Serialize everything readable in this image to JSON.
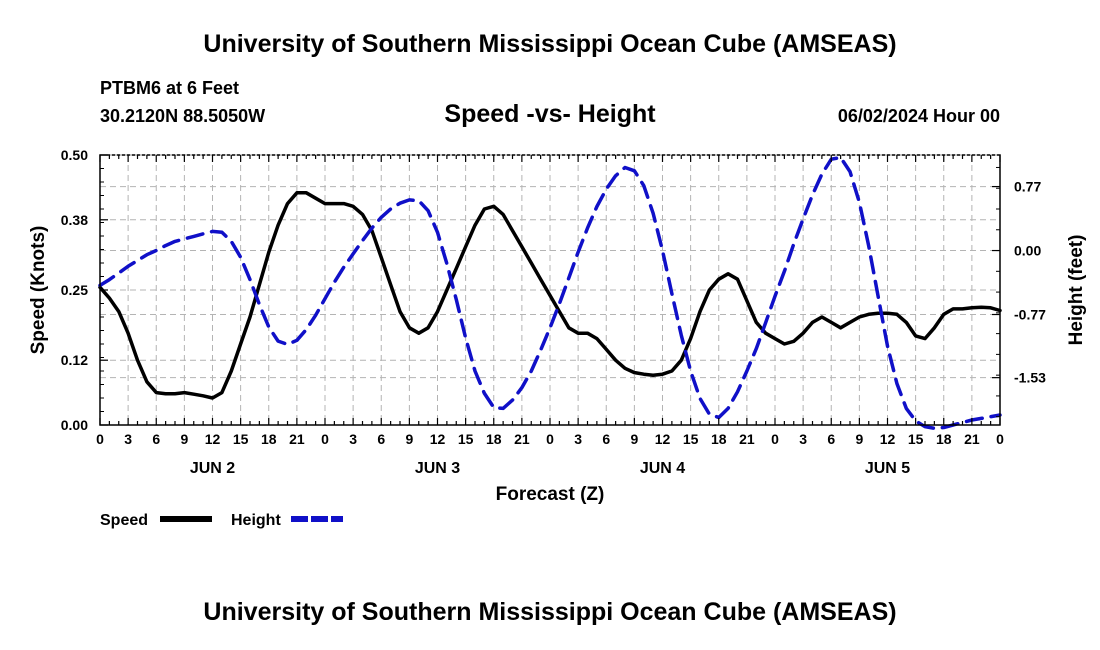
{
  "page_title_top": "University of Southern Mississippi Ocean Cube (AMSEAS)",
  "page_title_bottom": "University of Southern Mississippi Ocean Cube (AMSEAS)",
  "station": {
    "name": "PTBM6 at 6 Feet",
    "coordinates": "30.2120N  88.5050W"
  },
  "run_time": "06/02/2024 Hour 00",
  "colors": {
    "speed": "#000000",
    "height": "#1010c8",
    "grid": "#b4b4b4",
    "axis": "#000000"
  },
  "chart_data": {
    "type": "line",
    "title": "Speed -vs- Height",
    "xlabel": "Forecast (Z)",
    "ylabel": "Speed (Knots)",
    "y2label": "Height (feet)",
    "x_units": "forecast hours from 06/02/2024 00Z",
    "xlim": [
      0,
      96
    ],
    "ylim": [
      0,
      0.5
    ],
    "y2lim": [
      -2.1,
      1.15
    ],
    "x_ticks": [
      0,
      3,
      6,
      9,
      12,
      15,
      18,
      21,
      24,
      27,
      30,
      33,
      36,
      39,
      42,
      45,
      48,
      51,
      54,
      57,
      60,
      63,
      66,
      69,
      72,
      75,
      78,
      81,
      84,
      87,
      90,
      93,
      96
    ],
    "x_tick_labels": [
      "0",
      "3",
      "6",
      "9",
      "12",
      "15",
      "18",
      "21",
      "0",
      "3",
      "6",
      "9",
      "12",
      "15",
      "18",
      "21",
      "0",
      "3",
      "6",
      "9",
      "12",
      "15",
      "18",
      "21",
      "0",
      "3",
      "6",
      "9",
      "12",
      "15",
      "18",
      "21",
      "0"
    ],
    "y_ticks": [
      0.0,
      0.12,
      0.25,
      0.38,
      0.5
    ],
    "y_tick_labels": [
      "0.00",
      "0.12",
      "0.25",
      "0.38",
      "0.50"
    ],
    "y2_ticks": [
      0.77,
      0.0,
      -0.77,
      -1.53
    ],
    "y2_tick_labels": [
      "0.77",
      "0.00",
      "-0.77",
      "-1.53"
    ],
    "day_labels": [
      {
        "x": 12,
        "label": "JUN 2"
      },
      {
        "x": 36,
        "label": "JUN 3"
      },
      {
        "x": 60,
        "label": "JUN 4"
      },
      {
        "x": 84,
        "label": "JUN 5"
      }
    ],
    "series": [
      {
        "name": "Speed",
        "axis": "left",
        "style": "solid",
        "x": [
          0,
          1,
          2,
          3,
          4,
          5,
          6,
          7,
          8,
          9,
          10,
          11,
          12,
          13,
          14,
          15,
          16,
          17,
          18,
          19,
          20,
          21,
          22,
          23,
          24,
          25,
          26,
          27,
          28,
          29,
          30,
          31,
          32,
          33,
          34,
          35,
          36,
          37,
          38,
          39,
          40,
          41,
          42,
          43,
          44,
          45,
          46,
          47,
          48,
          49,
          50,
          51,
          52,
          53,
          54,
          55,
          56,
          57,
          58,
          59,
          60,
          61,
          62,
          63,
          64,
          65,
          66,
          67,
          68,
          69,
          70,
          71,
          72,
          73,
          74,
          75,
          76,
          77,
          78,
          79,
          80,
          81,
          82,
          83,
          84,
          85,
          86,
          87,
          88,
          89,
          90,
          91,
          92,
          93,
          94,
          95,
          96
        ],
        "values": [
          0.255,
          0.235,
          0.21,
          0.17,
          0.12,
          0.08,
          0.06,
          0.058,
          0.058,
          0.06,
          0.057,
          0.054,
          0.05,
          0.06,
          0.1,
          0.15,
          0.2,
          0.26,
          0.32,
          0.37,
          0.41,
          0.43,
          0.43,
          0.42,
          0.41,
          0.41,
          0.41,
          0.405,
          0.39,
          0.36,
          0.31,
          0.26,
          0.21,
          0.18,
          0.17,
          0.18,
          0.21,
          0.25,
          0.29,
          0.33,
          0.37,
          0.4,
          0.405,
          0.39,
          0.36,
          0.33,
          0.3,
          0.27,
          0.24,
          0.21,
          0.18,
          0.17,
          0.17,
          0.16,
          0.14,
          0.12,
          0.105,
          0.097,
          0.094,
          0.092,
          0.094,
          0.1,
          0.12,
          0.16,
          0.21,
          0.25,
          0.27,
          0.28,
          0.27,
          0.23,
          0.19,
          0.17,
          0.16,
          0.15,
          0.155,
          0.17,
          0.19,
          0.2,
          0.19,
          0.18,
          0.19,
          0.2,
          0.205,
          0.207,
          0.207,
          0.205,
          0.19,
          0.165,
          0.16,
          0.18,
          0.205,
          0.215,
          0.215,
          0.217,
          0.218,
          0.217,
          0.212
        ]
      },
      {
        "name": "Height",
        "axis": "right",
        "style": "dashed",
        "x": [
          0,
          1,
          2,
          3,
          4,
          5,
          6,
          7,
          8,
          9,
          10,
          11,
          12,
          13,
          14,
          15,
          16,
          17,
          18,
          19,
          20,
          21,
          22,
          23,
          24,
          25,
          26,
          27,
          28,
          29,
          30,
          31,
          32,
          33,
          34,
          35,
          36,
          37,
          38,
          39,
          40,
          41,
          42,
          43,
          44,
          45,
          46,
          47,
          48,
          49,
          50,
          51,
          52,
          53,
          54,
          55,
          56,
          57,
          58,
          59,
          60,
          61,
          62,
          63,
          64,
          65,
          66,
          67,
          68,
          69,
          70,
          71,
          72,
          73,
          74,
          75,
          76,
          77,
          78,
          79,
          80,
          81,
          82,
          83,
          84,
          85,
          86,
          87,
          88,
          89,
          90,
          91,
          92,
          93,
          94,
          95,
          96
        ],
        "values": [
          -0.42,
          -0.35,
          -0.27,
          -0.19,
          -0.12,
          -0.05,
          0.0,
          0.06,
          0.11,
          0.14,
          0.17,
          0.2,
          0.23,
          0.22,
          0.11,
          -0.08,
          -0.35,
          -0.65,
          -0.92,
          -1.09,
          -1.13,
          -1.08,
          -0.95,
          -0.78,
          -0.58,
          -0.38,
          -0.2,
          -0.04,
          0.12,
          0.27,
          0.4,
          0.5,
          0.57,
          0.61,
          0.6,
          0.48,
          0.22,
          -0.16,
          -0.59,
          -1.05,
          -1.45,
          -1.72,
          -1.89,
          -1.9,
          -1.8,
          -1.65,
          -1.45,
          -1.2,
          -0.93,
          -0.64,
          -0.33,
          -0.02,
          0.27,
          0.53,
          0.74,
          0.9,
          1.0,
          0.96,
          0.78,
          0.45,
          0.0,
          -0.52,
          -1.02,
          -1.45,
          -1.78,
          -1.97,
          -2.01,
          -1.9,
          -1.7,
          -1.45,
          -1.18,
          -0.87,
          -0.55,
          -0.25,
          0.08,
          0.38,
          0.67,
          0.92,
          1.1,
          1.12,
          0.95,
          0.58,
          0.05,
          -0.55,
          -1.15,
          -1.6,
          -1.9,
          -2.05,
          -2.12,
          -2.14,
          -2.13,
          -2.1,
          -2.07,
          -2.04,
          -2.02,
          -2.0,
          -1.98
        ]
      }
    ],
    "legend": [
      {
        "label": "Speed",
        "series": "Speed"
      },
      {
        "label": "Height",
        "series": "Height"
      }
    ],
    "legend_position": "bottom-left",
    "grid": true
  }
}
